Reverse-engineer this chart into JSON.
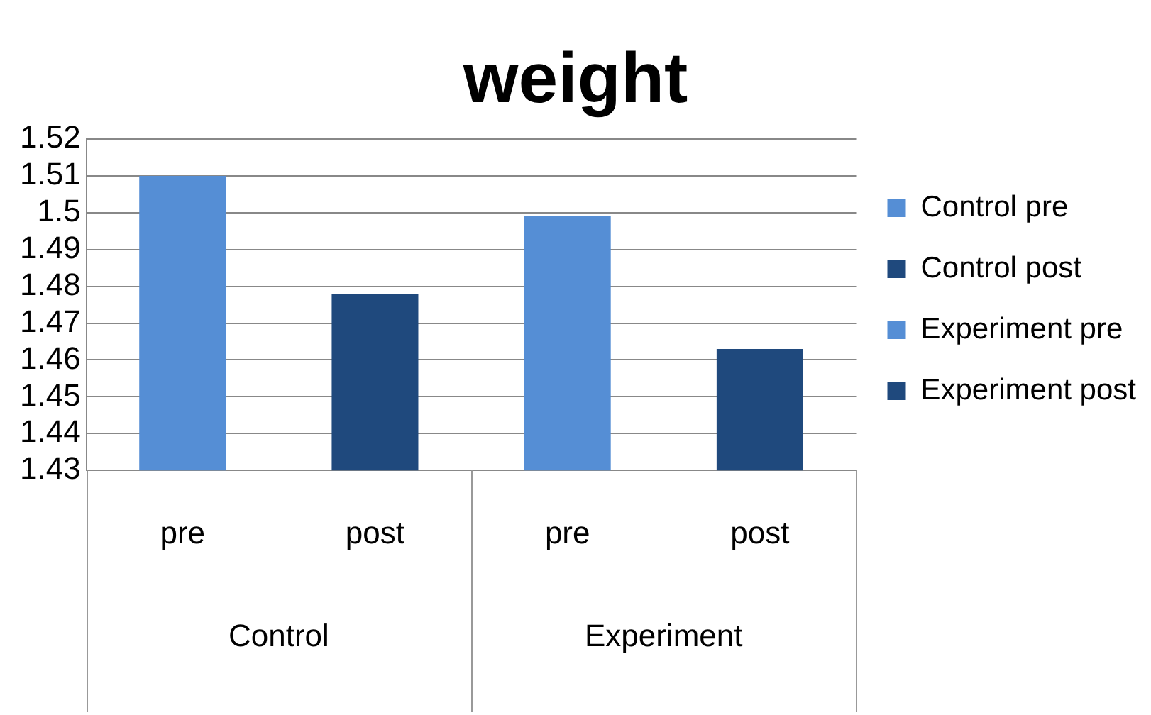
{
  "chart_data": {
    "type": "bar",
    "title": "weight",
    "categories": [
      "pre",
      "post",
      "pre",
      "post"
    ],
    "series": [
      {
        "name": "Control pre",
        "color": "#558ed5",
        "values": [
          1.51,
          null,
          null,
          null
        ]
      },
      {
        "name": "Control post",
        "color": "#1f497d",
        "values": [
          null,
          1.478,
          null,
          null
        ]
      },
      {
        "name": "Experiment pre",
        "color": "#558ed5",
        "values": [
          null,
          null,
          1.499,
          null
        ]
      },
      {
        "name": "Experiment post",
        "color": "#1f497d",
        "values": [
          null,
          null,
          null,
          1.463
        ]
      }
    ],
    "annotations": [
      "Control",
      "Experiment"
    ],
    "ylim": [
      1.43,
      1.52
    ],
    "yticks": [
      1.43,
      1.44,
      1.45,
      1.46,
      1.47,
      1.48,
      1.49,
      1.5,
      1.51,
      1.52
    ],
    "grid": "y",
    "legend": "right"
  }
}
